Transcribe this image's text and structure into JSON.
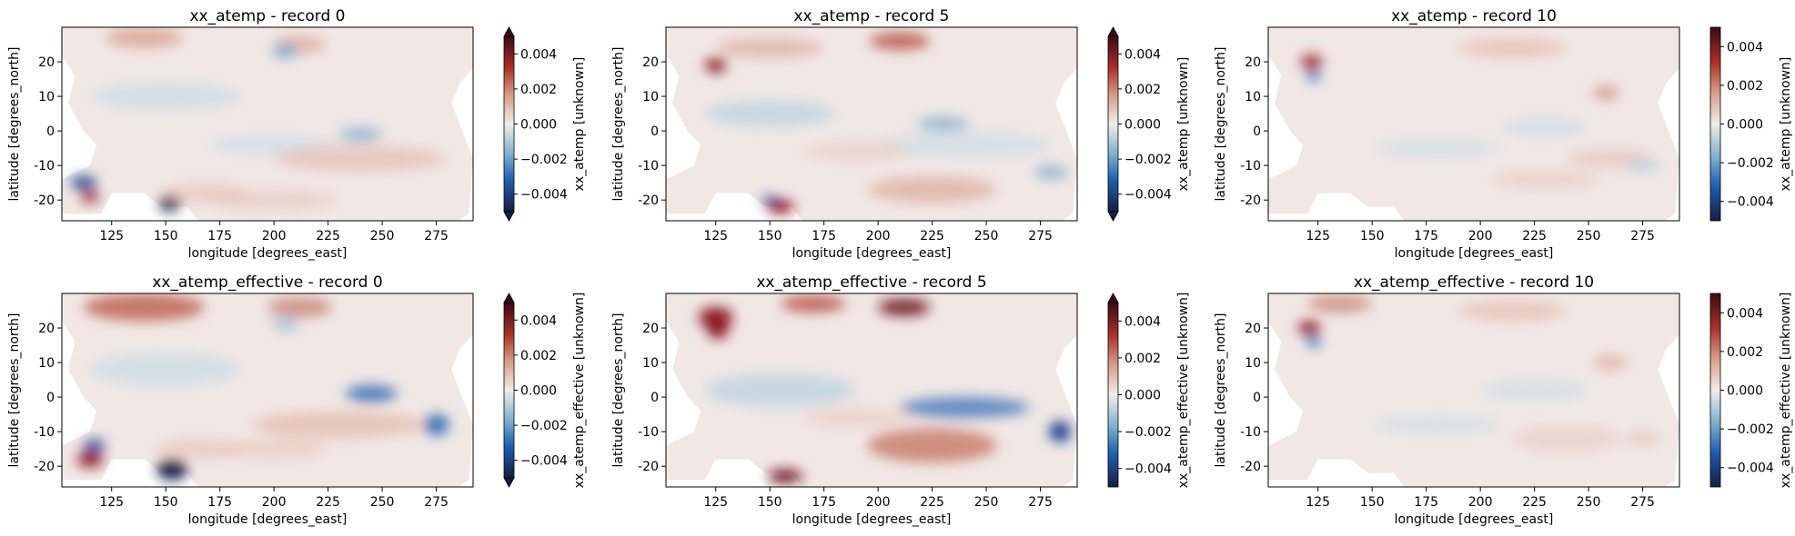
{
  "chart_data": [
    {
      "type": "heatmap",
      "title": "xx_atemp - record 0",
      "xlabel": "longitude [degrees_east]",
      "ylabel": "latitude [degrees_north]",
      "colorbar_label": "xx_atemp [unknown]",
      "colorbar_extend": "both",
      "x_ticks": [
        125,
        150,
        175,
        200,
        225,
        250,
        275
      ],
      "y_ticks": [
        20,
        10,
        0,
        -10,
        -20
      ],
      "colorbar_ticks": [
        "0.004",
        "0.002",
        "0.000",
        "−0.002",
        "−0.004"
      ],
      "xlim": [
        102,
        292
      ],
      "ylim": [
        -26,
        30
      ],
      "clim": [
        -0.005,
        0.005
      ],
      "colormap": "balance (blue-white-red)"
    },
    {
      "type": "heatmap",
      "title": "xx_atemp - record 5",
      "xlabel": "longitude [degrees_east]",
      "ylabel": "latitude [degrees_north]",
      "colorbar_label": "xx_atemp [unknown]",
      "colorbar_extend": "both",
      "x_ticks": [
        125,
        150,
        175,
        200,
        225,
        250,
        275
      ],
      "y_ticks": [
        20,
        10,
        0,
        -10,
        -20
      ],
      "colorbar_ticks": [
        "0.004",
        "0.002",
        "0.000",
        "−0.002",
        "−0.004"
      ],
      "xlim": [
        102,
        292
      ],
      "ylim": [
        -26,
        30
      ],
      "clim": [
        -0.005,
        0.005
      ],
      "colormap": "balance (blue-white-red)"
    },
    {
      "type": "heatmap",
      "title": "xx_atemp - record 10",
      "xlabel": "longitude [degrees_east]",
      "ylabel": "latitude [degrees_north]",
      "colorbar_label": "xx_atemp [unknown]",
      "colorbar_extend": "neither",
      "x_ticks": [
        125,
        150,
        175,
        200,
        225,
        250,
        275
      ],
      "y_ticks": [
        20,
        10,
        0,
        -10,
        -20
      ],
      "colorbar_ticks": [
        "0.004",
        "0.002",
        "0.000",
        "−0.002",
        "−0.004"
      ],
      "xlim": [
        102,
        292
      ],
      "ylim": [
        -26,
        30
      ],
      "clim": [
        -0.005,
        0.005
      ],
      "colormap": "balance (blue-white-red)"
    },
    {
      "type": "heatmap",
      "title": "xx_atemp_effective - record 0",
      "xlabel": "longitude [degrees_east]",
      "ylabel": "latitude [degrees_north]",
      "colorbar_label": "xx_atemp_effective [unknown]",
      "colorbar_extend": "both",
      "x_ticks": [
        125,
        150,
        175,
        200,
        225,
        250,
        275
      ],
      "y_ticks": [
        20,
        10,
        0,
        -10,
        -20
      ],
      "colorbar_ticks": [
        "0.004",
        "0.002",
        "0.000",
        "−0.002",
        "−0.004"
      ],
      "xlim": [
        102,
        292
      ],
      "ylim": [
        -26,
        30
      ],
      "clim": [
        -0.005,
        0.005
      ],
      "colormap": "balance (blue-white-red)"
    },
    {
      "type": "heatmap",
      "title": "xx_atemp_effective - record 5",
      "xlabel": "longitude [degrees_east]",
      "ylabel": "latitude [degrees_north]",
      "colorbar_label": "xx_atemp_effective [unknown]",
      "colorbar_extend": "max",
      "x_ticks": [
        125,
        150,
        175,
        200,
        225,
        250,
        275
      ],
      "y_ticks": [
        20,
        10,
        0,
        -10,
        -20
      ],
      "colorbar_ticks": [
        "0.004",
        "0.002",
        "0.000",
        "−0.002",
        "−0.004"
      ],
      "xlim": [
        102,
        292
      ],
      "ylim": [
        -26,
        30
      ],
      "clim": [
        -0.005,
        0.005
      ],
      "colormap": "balance (blue-white-red)"
    },
    {
      "type": "heatmap",
      "title": "xx_atemp_effective - record 10",
      "xlabel": "longitude [degrees_east]",
      "ylabel": "latitude [degrees_north]",
      "colorbar_label": "xx_atemp_effective [unknown]",
      "colorbar_extend": "neither",
      "x_ticks": [
        125,
        150,
        175,
        200,
        225,
        250,
        275
      ],
      "y_ticks": [
        20,
        10,
        0,
        -10,
        -20
      ],
      "colorbar_ticks": [
        "0.004",
        "0.002",
        "0.000",
        "−0.002",
        "−0.004"
      ],
      "xlim": [
        102,
        292
      ],
      "ylim": [
        -26,
        30
      ],
      "clim": [
        -0.005,
        0.005
      ],
      "colormap": "balance (blue-white-red)"
    }
  ]
}
